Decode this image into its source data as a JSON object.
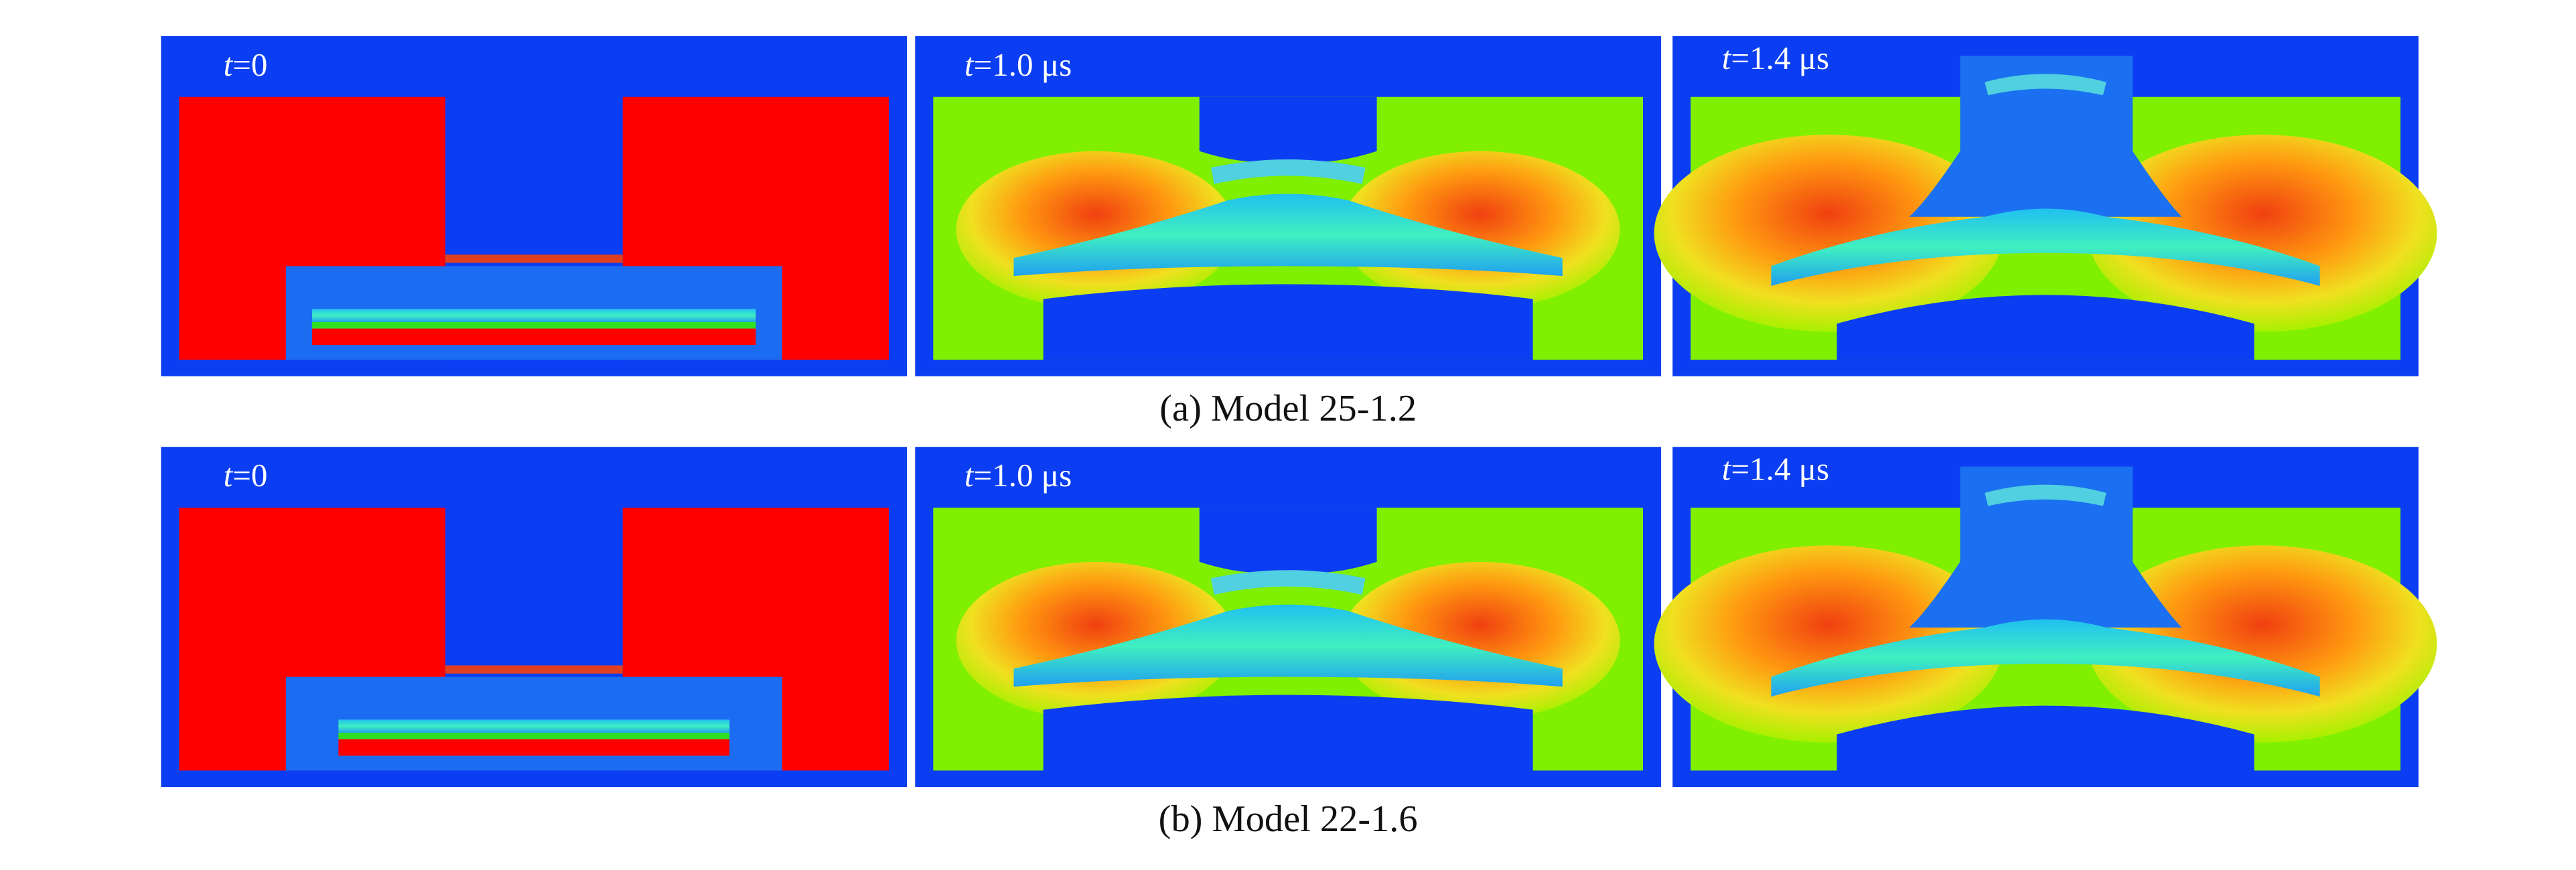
{
  "rows": [
    {
      "caption": "(a) Model 25-1.2",
      "panels": [
        {
          "var": "t",
          "value": "=0"
        },
        {
          "var": "t",
          "value": "=1.0 μs"
        },
        {
          "var": "t",
          "value": "=1.4 μs"
        }
      ]
    },
    {
      "caption": "(b) Model 22-1.6",
      "panels": [
        {
          "var": "t",
          "value": "=0"
        },
        {
          "var": "t",
          "value": "=1.0 μs"
        },
        {
          "var": "t",
          "value": "=1.4 μs"
        }
      ]
    }
  ]
}
